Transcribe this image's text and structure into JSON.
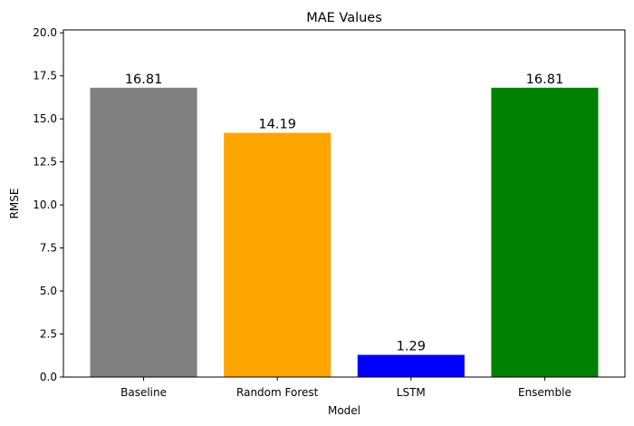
{
  "chart_data": {
    "type": "bar",
    "title": "MAE Values",
    "xlabel": "Model",
    "ylabel": "RMSE",
    "categories": [
      "Baseline",
      "Random Forest",
      "LSTM",
      "Ensemble"
    ],
    "values": [
      16.81,
      14.19,
      1.29,
      16.81
    ],
    "value_labels": [
      "16.81",
      "14.19",
      "1.29",
      "16.81"
    ],
    "colors": [
      "#808080",
      "#ffa500",
      "#0000ff",
      "#008000"
    ],
    "ylim": [
      0,
      20.17
    ],
    "yticks": [
      0.0,
      2.5,
      5.0,
      7.5,
      10.0,
      12.5,
      15.0,
      17.5,
      20.0
    ],
    "ytick_labels": [
      "0.0",
      "2.5",
      "5.0",
      "7.5",
      "10.0",
      "12.5",
      "15.0",
      "17.5",
      "20.0"
    ],
    "grid": false,
    "legend": false
  }
}
